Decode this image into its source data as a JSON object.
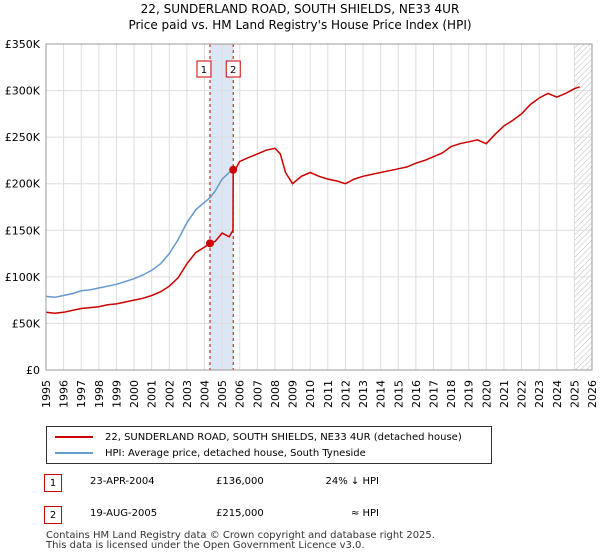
{
  "header": {
    "title_line1": "22, SUNDERLAND ROAD, SOUTH SHIELDS, NE33 4UR",
    "title_line2": "Price paid vs. HM Land Registry's House Price Index (HPI)"
  },
  "colors": {
    "property": "#cc0000",
    "hpi": "#6699cc",
    "band": "#dde6f5",
    "grid": "#dddddd"
  },
  "chart_data": {
    "type": "line",
    "ylim": [
      0,
      350000
    ],
    "xlim": [
      1995,
      2026
    ],
    "y_ticks": [
      0,
      50000,
      100000,
      150000,
      200000,
      250000,
      300000,
      350000
    ],
    "y_tick_labels": [
      "£0",
      "£50K",
      "£100K",
      "£150K",
      "£200K",
      "£250K",
      "£300K",
      "£350K"
    ],
    "x_ticks": [
      1995,
      1996,
      1997,
      1998,
      1999,
      2000,
      2001,
      2002,
      2003,
      2004,
      2005,
      2006,
      2007,
      2008,
      2009,
      2010,
      2011,
      2012,
      2013,
      2014,
      2015,
      2016,
      2017,
      2018,
      2019,
      2020,
      2021,
      2022,
      2023,
      2024,
      2025,
      2026
    ],
    "grid": true,
    "shaded_span": [
      2004.31,
      2005.63
    ],
    "forecast_from": 2025.0,
    "series": [
      {
        "name": "22, SUNDERLAND ROAD, SOUTH SHIELDS, NE33 4UR (detached house)",
        "color": "#cc0000",
        "x": [
          1995,
          1995.5,
          1996,
          1996.5,
          1997,
          1997.5,
          1998,
          1998.5,
          1999,
          1999.5,
          2000,
          2000.5,
          2001,
          2001.5,
          2002,
          2002.5,
          2003,
          2003.5,
          2004,
          2004.31,
          2004.6,
          2005,
          2005.4,
          2005.62,
          2005.63,
          2005.8,
          2006,
          2006.5,
          2007,
          2007.5,
          2008,
          2008.3,
          2008.6,
          2009,
          2009.5,
          2010,
          2010.5,
          2011,
          2011.5,
          2012,
          2012.5,
          2013,
          2013.5,
          2014,
          2014.5,
          2015,
          2015.5,
          2016,
          2016.5,
          2017,
          2017.5,
          2018,
          2018.5,
          2019,
          2019.5,
          2020,
          2020.5,
          2021,
          2021.5,
          2022,
          2022.5,
          2023,
          2023.5,
          2024,
          2024.5,
          2025,
          2025.3
        ],
        "values": [
          62000,
          61000,
          62000,
          64000,
          66000,
          67000,
          68000,
          70000,
          71000,
          73000,
          75000,
          77000,
          80000,
          84000,
          90000,
          99000,
          114000,
          126000,
          132000,
          136000,
          138000,
          147000,
          143000,
          150000,
          215000,
          217000,
          224000,
          228000,
          232000,
          236000,
          238000,
          232000,
          212000,
          200000,
          208000,
          212000,
          208000,
          205000,
          203000,
          200000,
          205000,
          208000,
          210000,
          212000,
          214000,
          216000,
          218000,
          222000,
          225000,
          229000,
          233000,
          240000,
          243000,
          245000,
          247000,
          243000,
          253000,
          262000,
          268000,
          275000,
          285000,
          292000,
          297000,
          293000,
          297000,
          302000,
          304000
        ]
      },
      {
        "name": "HPI: Average price, detached house, South Tyneside",
        "color": "#6699cc",
        "x": [
          1995,
          1995.5,
          1996,
          1996.5,
          1997,
          1997.5,
          1998,
          1998.5,
          1999,
          1999.5,
          2000,
          2000.5,
          2001,
          2001.5,
          2002,
          2002.5,
          2003,
          2003.5,
          2004,
          2004.31,
          2004.6,
          2005,
          2005.4,
          2005.63
        ],
        "values": [
          79000,
          78000,
          80000,
          82000,
          85000,
          86000,
          88000,
          90000,
          92000,
          95000,
          98000,
          102000,
          107000,
          114000,
          125000,
          140000,
          158000,
          172000,
          180000,
          185000,
          192000,
          205000,
          212000,
          215000
        ]
      }
    ],
    "annotations": [
      {
        "label": "1",
        "x": 2004.31,
        "value": 136000
      },
      {
        "label": "2",
        "x": 2005.63,
        "value": 215000
      }
    ]
  },
  "legend": {
    "property_label": "22, SUNDERLAND ROAD, SOUTH SHIELDS, NE33 4UR (detached house)",
    "hpi_label": "HPI: Average price, detached house, South Tyneside"
  },
  "transactions": [
    {
      "num": "1",
      "date": "23-APR-2004",
      "price": "£136,000",
      "hpi": "24% ↓ HPI"
    },
    {
      "num": "2",
      "date": "19-AUG-2005",
      "price": "£215,000",
      "hpi": "≈ HPI"
    }
  ],
  "footer": {
    "line1": "Contains HM Land Registry data © Crown copyright and database right 2025.",
    "line2": "This data is licensed under the Open Government Licence v3.0."
  }
}
